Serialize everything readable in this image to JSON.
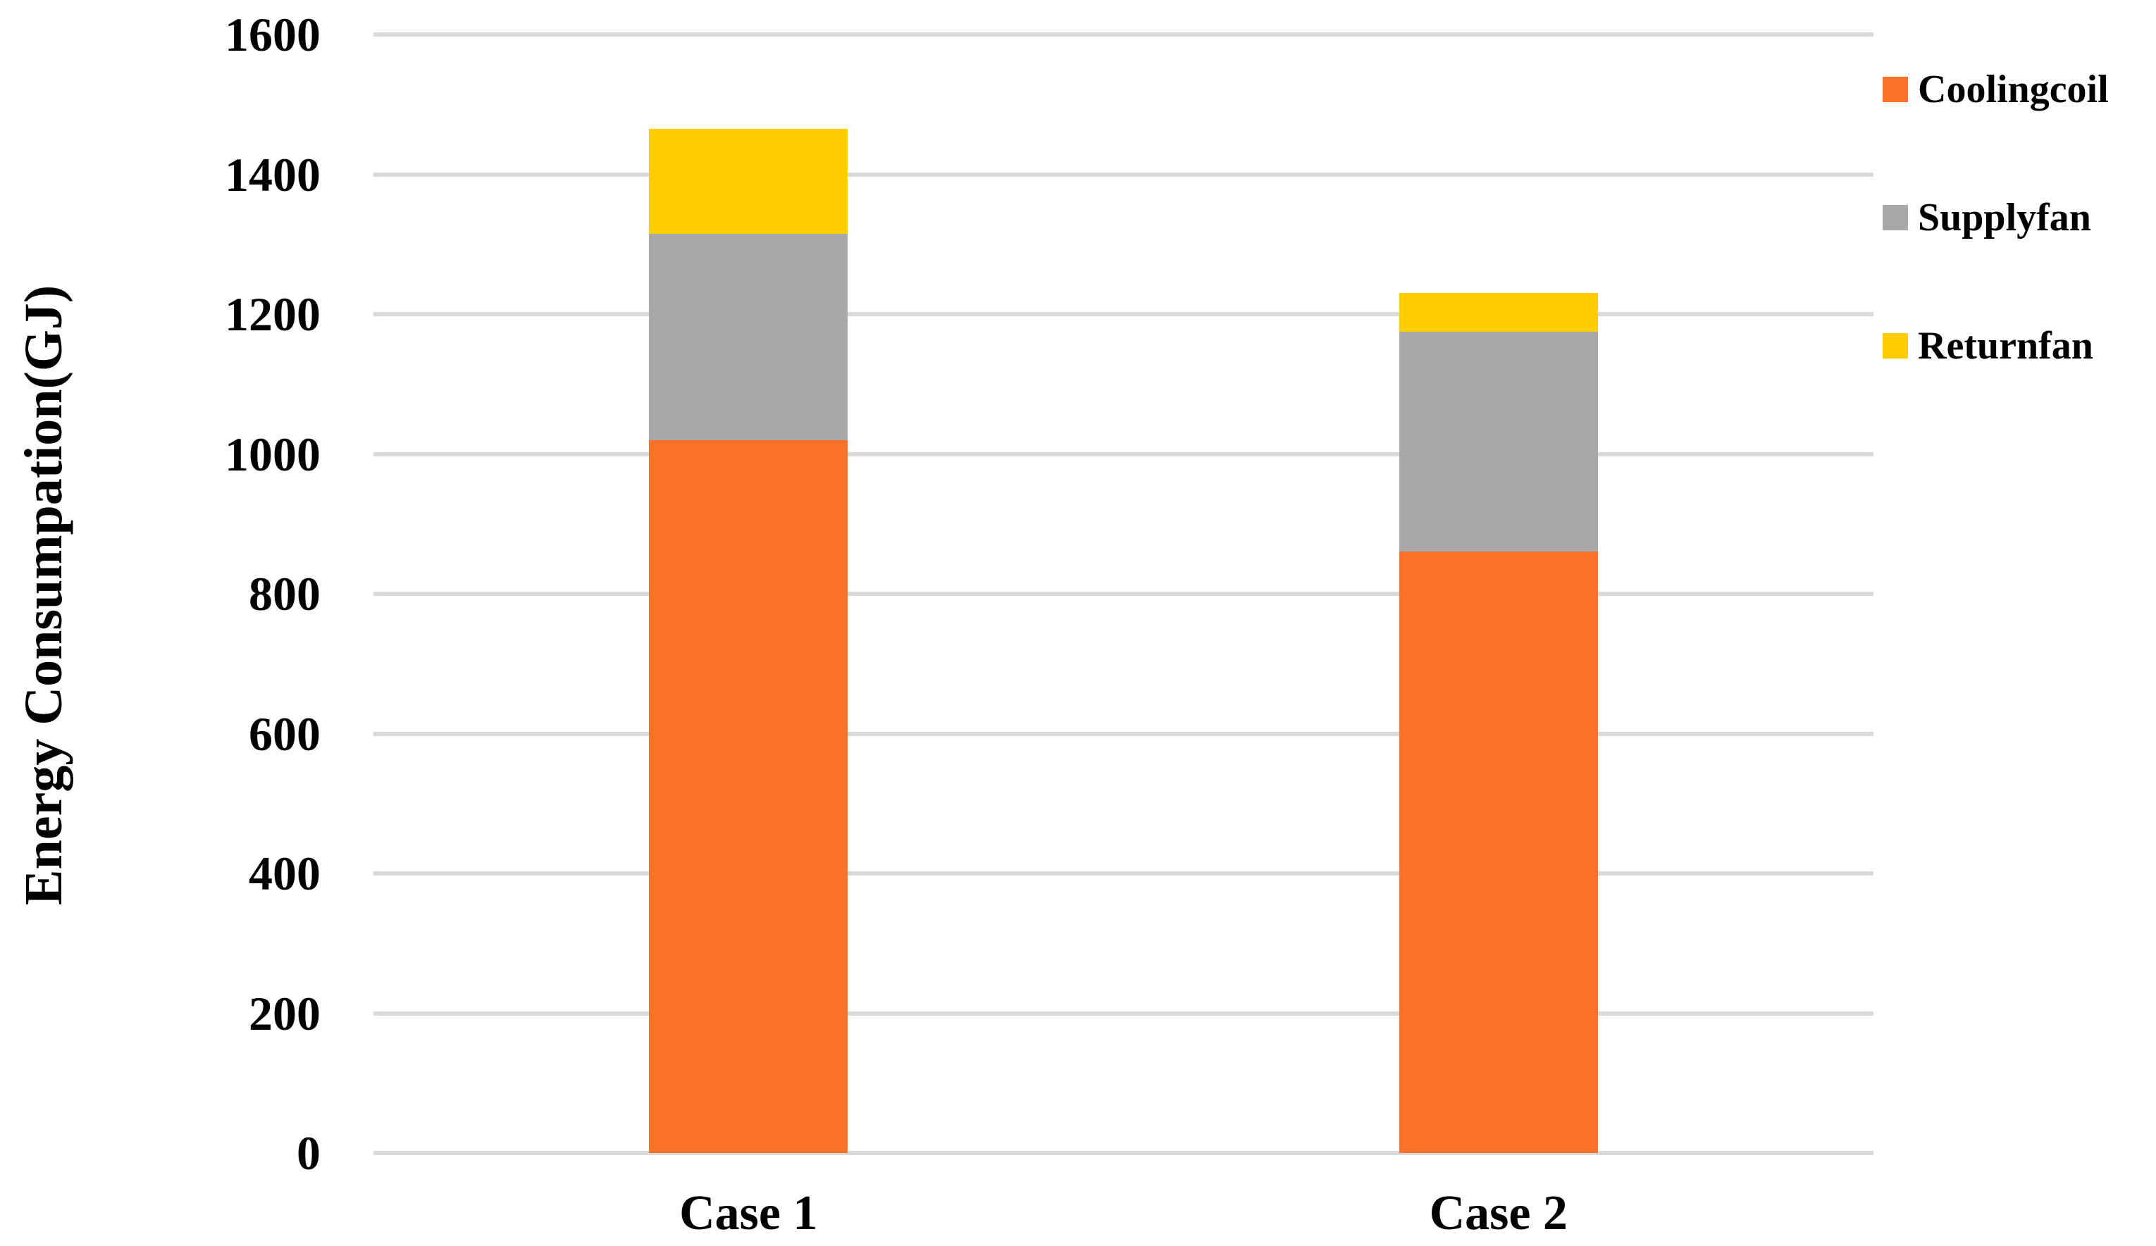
{
  "chart_data": {
    "type": "bar",
    "stacked": true,
    "title": "",
    "categories": [
      "Case 1",
      "Case 2"
    ],
    "series": [
      {
        "name": "Coolingcoil",
        "color": "#FC722B",
        "values": [
          1020,
          860
        ]
      },
      {
        "name": "Supplyfan",
        "color": "#A8A8A8",
        "values": [
          295,
          315
        ]
      },
      {
        "name": "Returnfan",
        "color": "#FFCD00",
        "values": [
          150,
          55
        ]
      }
    ],
    "xlabel": "",
    "ylabel": "Energy Consumpation(GJ)",
    "ylim": [
      0,
      1600
    ],
    "yticks": [
      0,
      200,
      400,
      600,
      800,
      1000,
      1200,
      1400,
      1600
    ],
    "grid": true,
    "gridline_color": "#D9D9D9",
    "background_color": "#FFFFFF",
    "text_color": "#000000",
    "legend_position": "right"
  }
}
